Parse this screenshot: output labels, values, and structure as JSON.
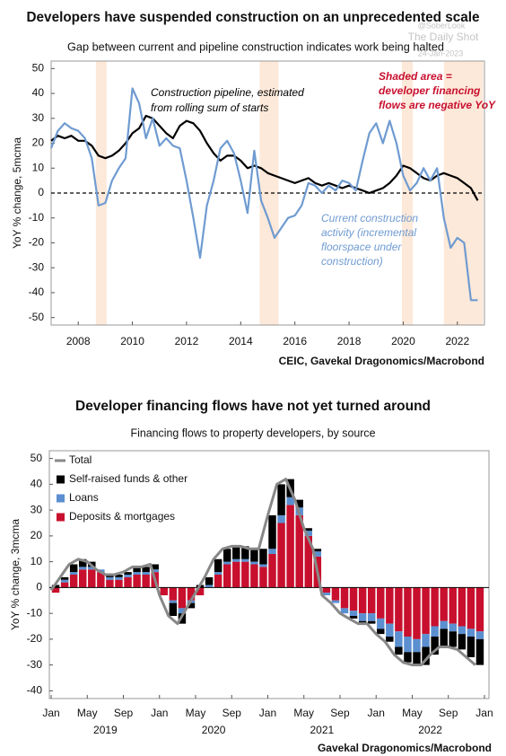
{
  "chart_data": [
    {
      "type": "line",
      "title": "Developers have suspended construction on an unprecedented scale",
      "subtitle": "Gap between current and pipeline construction indicates work being halted",
      "watermark": [
        "@SoberLook",
        "The Daily Shot",
        "24-Jan-2023"
      ],
      "y_label": "YoY % change, 5mcma",
      "source": "CEIC, Gavekal Dragonomics/Macrobond",
      "x": [
        2007,
        2007.25,
        2007.5,
        2007.75,
        2008,
        2008.25,
        2008.5,
        2008.75,
        2009,
        2009.25,
        2009.5,
        2009.75,
        2010,
        2010.25,
        2010.5,
        2010.75,
        2011,
        2011.25,
        2011.5,
        2011.75,
        2012,
        2012.25,
        2012.5,
        2012.75,
        2013,
        2013.25,
        2013.5,
        2013.75,
        2014,
        2014.25,
        2014.5,
        2014.75,
        2015,
        2015.25,
        2015.5,
        2015.75,
        2016,
        2016.25,
        2016.5,
        2016.75,
        2017,
        2017.25,
        2017.5,
        2017.75,
        2018,
        2018.25,
        2018.5,
        2018.75,
        2019,
        2019.25,
        2019.5,
        2019.75,
        2020,
        2020.25,
        2020.5,
        2020.75,
        2021,
        2021.25,
        2021.5,
        2021.75,
        2022,
        2022.25,
        2022.5,
        2022.75
      ],
      "series": [
        {
          "color": "#000000",
          "values": [
            21,
            23,
            22,
            23,
            21,
            21,
            19,
            15,
            14,
            15,
            17,
            20,
            24,
            26,
            31,
            30,
            27,
            24,
            22,
            27,
            29,
            28,
            25,
            20,
            16,
            13,
            15,
            15,
            13,
            10,
            11,
            10,
            8,
            7,
            6,
            5,
            4,
            5,
            6,
            4,
            3,
            4,
            3,
            2,
            3,
            2,
            1,
            0,
            1,
            2,
            4,
            7,
            11,
            10,
            8,
            6,
            5,
            7,
            8,
            7,
            6,
            4,
            2,
            -3
          ]
        },
        {
          "color": "#6f9bd1",
          "values": [
            18,
            25,
            28,
            26,
            25,
            22,
            14,
            -5,
            -4,
            5,
            10,
            14,
            42,
            36,
            22,
            30,
            19,
            22,
            19,
            18,
            5,
            -10,
            -26,
            -5,
            5,
            18,
            21,
            16,
            5,
            -8,
            17,
            -3,
            -10,
            -18,
            -14,
            -10,
            -9,
            -5,
            4,
            3,
            0,
            3,
            1,
            5,
            4,
            1,
            13,
            24,
            28,
            20,
            29,
            20,
            7,
            1,
            4,
            10,
            5,
            10,
            -10,
            -22,
            -18,
            -20,
            -43,
            -43
          ]
        }
      ],
      "xlim": [
        2007,
        2023
      ],
      "ylim": [
        -53,
        53
      ],
      "xticks": [
        2008,
        2010,
        2012,
        2014,
        2016,
        2018,
        2020,
        2022
      ],
      "yticks": [
        50,
        40,
        30,
        20,
        10,
        0,
        -10,
        -20,
        -30,
        -40,
        -50
      ],
      "zero_line": true,
      "shaded": [
        [
          2008.65,
          2009.05
        ],
        [
          2014.7,
          2015.4
        ],
        [
          2019.95,
          2020.35
        ],
        [
          2021.5,
          2022.95
        ]
      ],
      "shade_color": "#fde9d9",
      "annotations": [
        {
          "lines": [
            "Construction pipeline, estimated",
            "from rolling sum of starts"
          ],
          "color": "#000000"
        },
        {
          "lines": [
            "Shaded area =",
            "developer financing",
            "flows are negative YoY"
          ],
          "color": "#c8102e"
        },
        {
          "lines": [
            "Current construction",
            "activity (incremental",
            "floorspace under",
            "construction)"
          ],
          "color": "#6f9bd1"
        }
      ]
    },
    {
      "type": "bar",
      "stacked": true,
      "title": "Developer financing flows have not yet turned around",
      "subtitle": "Financing flows to property developers, by source",
      "y_label": "YoY % change, 3mcma",
      "source": "Gavekal Dragonomics/Macrobond",
      "x": [
        0,
        1,
        2,
        3,
        4,
        5,
        6,
        7,
        8,
        9,
        10,
        11,
        12,
        13,
        14,
        15,
        16,
        17,
        18,
        19,
        20,
        21,
        22,
        23,
        24,
        25,
        26,
        27,
        28,
        29,
        30,
        31,
        32,
        33,
        34,
        35,
        36,
        37,
        38,
        39,
        40,
        41,
        42,
        43,
        44,
        45,
        46,
        47
      ],
      "xlim": [
        -0.2,
        48.5
      ],
      "ylim": [
        -43,
        53
      ],
      "xticks": [
        {
          "value": 0,
          "label": "Jan"
        },
        {
          "value": 4,
          "label": "May"
        },
        {
          "value": 8,
          "label": "Sep"
        },
        {
          "value": 12,
          "label": "Jan"
        },
        {
          "value": 16,
          "label": "May"
        },
        {
          "value": 20,
          "label": "Sep"
        },
        {
          "value": 24,
          "label": "Jan"
        },
        {
          "value": 28,
          "label": "May"
        },
        {
          "value": 32,
          "label": "Sep"
        },
        {
          "value": 36,
          "label": "Jan"
        },
        {
          "value": 40,
          "label": "May"
        },
        {
          "value": 44,
          "label": "Sep"
        },
        {
          "value": 48,
          "label": "Jan"
        }
      ],
      "groups": [
        {
          "label": "2019",
          "range": [
            0,
            12
          ]
        },
        {
          "label": "2020",
          "range": [
            12,
            24
          ]
        },
        {
          "label": "2021",
          "range": [
            24,
            36
          ]
        },
        {
          "label": "2022",
          "range": [
            36,
            48
          ]
        }
      ],
      "yticks": [
        50,
        40,
        30,
        20,
        10,
        0,
        -10,
        -20,
        -30,
        -40
      ],
      "legend": "upper left",
      "series": [
        {
          "name": "Deposits & mortgages",
          "color": "#c8102e",
          "values": [
            -2,
            2,
            5,
            7,
            7,
            6,
            3,
            3,
            4,
            5,
            5,
            6,
            -3,
            -5,
            -8,
            -5,
            -3,
            0,
            5,
            9,
            10,
            10,
            9,
            8,
            13,
            25,
            32,
            28,
            20,
            12,
            -2,
            -5,
            -8,
            -9,
            -10,
            -10,
            -12,
            -14,
            -17,
            -19,
            -20,
            -18,
            -15,
            -13,
            -14,
            -15,
            -16,
            -17
          ]
        },
        {
          "name": "Loans",
          "color": "#5b8fd0",
          "values": [
            0,
            1,
            1,
            1,
            1,
            1,
            1,
            1,
            1,
            1,
            1,
            1,
            0,
            -1,
            -2,
            -1,
            0,
            1,
            1,
            1,
            1,
            1,
            1,
            1,
            2,
            3,
            3,
            3,
            2,
            2,
            -1,
            -1,
            -2,
            -2,
            -3,
            -3,
            -4,
            -5,
            -6,
            -6,
            -5,
            -5,
            -4,
            -3,
            -3,
            -3,
            -3,
            -3
          ]
        },
        {
          "name": "Self-raised funds & other",
          "color": "#000000",
          "values": [
            1,
            1,
            3,
            3,
            2,
            0,
            1,
            1,
            1,
            2,
            2,
            2,
            0,
            -5,
            -4,
            -2,
            1,
            3,
            5,
            5,
            5,
            5,
            5,
            6,
            13,
            12,
            7,
            3,
            1,
            1,
            0,
            0,
            0,
            -1,
            -1,
            -1,
            -2,
            -2,
            -3,
            -4,
            -5,
            -7,
            -7,
            -7,
            -6,
            -6,
            -8,
            -10
          ]
        },
        {
          "name": "Total",
          "color": "#888888",
          "mark": "line",
          "values": [
            -1,
            4,
            9,
            11,
            10,
            7,
            5,
            5,
            6,
            8,
            8,
            9,
            -3,
            -11,
            -14,
            -8,
            -2,
            4,
            11,
            15,
            16,
            16,
            15,
            15,
            28,
            40,
            42,
            34,
            23,
            15,
            -3,
            -6,
            -10,
            -12,
            -14,
            -14,
            -18,
            -21,
            -26,
            -29,
            -30,
            -30,
            -26,
            -23,
            -23,
            -24,
            -27,
            -30
          ]
        }
      ]
    }
  ]
}
